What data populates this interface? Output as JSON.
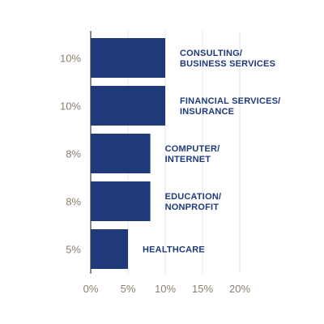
{
  "chart_data": {
    "type": "bar",
    "orientation": "horizontal",
    "categories": [
      [
        "CONSULTING/",
        "BUSINESS SERVICES"
      ],
      [
        "FINANCIAL SERVICES/",
        "INSURANCE"
      ],
      [
        "COMPUTER/",
        "INTERNET"
      ],
      [
        "EDUCATION/",
        "NONPROFIT"
      ],
      [
        "HEALTHCARE"
      ]
    ],
    "values": [
      10,
      10,
      8,
      8,
      5
    ],
    "value_labels": [
      "10%",
      "10%",
      "8%",
      "8%",
      "5%"
    ],
    "x_ticks": [
      0,
      5,
      10,
      15,
      20
    ],
    "x_tick_labels": [
      "0%",
      "5%",
      "10%",
      "15%",
      "20%"
    ],
    "xlim": [
      0,
      20
    ],
    "grid": true,
    "colors": {
      "bar": "#1f3a7a",
      "label": "#1f3a7a",
      "value_text": "#8c7f6e",
      "grid": "#e6e6e6",
      "axis": "#3a3a3a"
    }
  }
}
